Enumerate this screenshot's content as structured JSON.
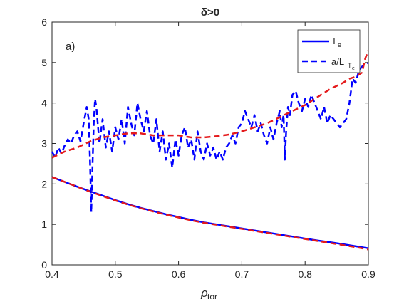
{
  "chart_data": {
    "type": "line",
    "title": "δ>0",
    "panel_label": "a)",
    "xlabel": "ρ",
    "xlabel_sub": "tor",
    "ylabel": "",
    "xlim": [
      0.4,
      0.9
    ],
    "ylim": [
      0,
      6
    ],
    "xticks": [
      "0.4",
      "0.5",
      "0.6",
      "0.7",
      "0.8",
      "0.9"
    ],
    "yticks": [
      "0",
      "1",
      "2",
      "3",
      "4",
      "5",
      "6"
    ],
    "grid": false,
    "legend_position": "top-right",
    "legend": [
      {
        "label": "T",
        "sub": "e",
        "style": "solid",
        "color": "#0000ff"
      },
      {
        "label": "a/L",
        "sub": "T",
        "subsub": "e",
        "style": "dashed",
        "color": "#0000ff"
      }
    ],
    "series": [
      {
        "name": "T_e",
        "dataset": "blue",
        "style": "solid",
        "color": "#0000ff",
        "x": [
          0.4,
          0.42,
          0.44,
          0.46,
          0.48,
          0.5,
          0.52,
          0.54,
          0.56,
          0.58,
          0.6,
          0.62,
          0.64,
          0.66,
          0.68,
          0.7,
          0.72,
          0.74,
          0.76,
          0.78,
          0.8,
          0.82,
          0.84,
          0.86,
          0.88,
          0.9
        ],
        "y": [
          2.17,
          2.05,
          1.93,
          1.82,
          1.71,
          1.6,
          1.5,
          1.41,
          1.33,
          1.25,
          1.18,
          1.11,
          1.05,
          1.0,
          0.95,
          0.9,
          0.85,
          0.8,
          0.75,
          0.7,
          0.65,
          0.6,
          0.56,
          0.51,
          0.46,
          0.41
        ]
      },
      {
        "name": "T_e",
        "dataset": "red",
        "style": "dashed",
        "color": "#e41a1c",
        "x": [
          0.4,
          0.42,
          0.44,
          0.46,
          0.48,
          0.5,
          0.52,
          0.54,
          0.56,
          0.58,
          0.6,
          0.62,
          0.64,
          0.66,
          0.68,
          0.7,
          0.72,
          0.74,
          0.76,
          0.78,
          0.8,
          0.82,
          0.84,
          0.86,
          0.88,
          0.9
        ],
        "y": [
          2.17,
          2.05,
          1.93,
          1.81,
          1.7,
          1.59,
          1.49,
          1.4,
          1.32,
          1.24,
          1.17,
          1.1,
          1.04,
          0.99,
          0.94,
          0.89,
          0.84,
          0.79,
          0.74,
          0.69,
          0.64,
          0.59,
          0.54,
          0.49,
          0.44,
          0.38
        ]
      },
      {
        "name": "a/L_Te",
        "dataset": "blue",
        "style": "dashed",
        "color": "#0000ff",
        "x": [
          0.4,
          0.405,
          0.41,
          0.415,
          0.42,
          0.425,
          0.43,
          0.435,
          0.44,
          0.445,
          0.45,
          0.455,
          0.458,
          0.46,
          0.462,
          0.464,
          0.466,
          0.468,
          0.47,
          0.475,
          0.48,
          0.485,
          0.49,
          0.495,
          0.5,
          0.505,
          0.51,
          0.515,
          0.52,
          0.525,
          0.53,
          0.535,
          0.54,
          0.545,
          0.55,
          0.555,
          0.56,
          0.565,
          0.57,
          0.575,
          0.58,
          0.585,
          0.59,
          0.595,
          0.6,
          0.605,
          0.61,
          0.615,
          0.62,
          0.625,
          0.63,
          0.635,
          0.64,
          0.645,
          0.65,
          0.655,
          0.66,
          0.665,
          0.67,
          0.675,
          0.68,
          0.685,
          0.69,
          0.695,
          0.7,
          0.705,
          0.71,
          0.715,
          0.72,
          0.725,
          0.73,
          0.735,
          0.74,
          0.745,
          0.75,
          0.755,
          0.76,
          0.763,
          0.766,
          0.768,
          0.77,
          0.773,
          0.776,
          0.78,
          0.785,
          0.79,
          0.795,
          0.8,
          0.805,
          0.81,
          0.815,
          0.82,
          0.825,
          0.83,
          0.835,
          0.84,
          0.845,
          0.85,
          0.855,
          0.86,
          0.865,
          0.87,
          0.875,
          0.88,
          0.885,
          0.89,
          0.895,
          0.9
        ],
        "y": [
          2.8,
          2.65,
          2.9,
          2.75,
          2.95,
          3.1,
          3.0,
          3.2,
          3.3,
          3.05,
          3.5,
          3.9,
          3.6,
          2.6,
          1.3,
          2.4,
          3.5,
          4.1,
          3.9,
          3.0,
          3.6,
          2.9,
          3.3,
          2.8,
          3.4,
          3.1,
          3.6,
          3.0,
          3.9,
          3.5,
          3.2,
          4.0,
          3.6,
          3.3,
          3.8,
          3.2,
          3.0,
          3.6,
          2.8,
          3.3,
          2.6,
          3.0,
          2.4,
          3.1,
          2.7,
          3.2,
          3.4,
          2.9,
          3.1,
          2.6,
          3.3,
          2.8,
          2.6,
          3.0,
          2.7,
          2.9,
          2.6,
          2.8,
          2.6,
          2.9,
          3.0,
          3.2,
          3.0,
          3.4,
          3.5,
          3.8,
          3.6,
          3.4,
          3.7,
          3.3,
          3.5,
          3.2,
          3.0,
          3.4,
          3.1,
          3.5,
          3.8,
          3.4,
          3.7,
          2.6,
          3.3,
          3.9,
          3.7,
          4.2,
          4.3,
          4.0,
          3.8,
          4.1,
          3.9,
          4.2,
          4.0,
          3.8,
          3.6,
          3.9,
          3.5,
          3.7,
          3.6,
          3.5,
          3.4,
          3.5,
          3.6,
          4.0,
          4.6,
          4.5,
          4.8,
          4.9,
          4.95,
          5.0
        ]
      },
      {
        "name": "a/L_Te",
        "dataset": "red",
        "style": "dashed",
        "color": "#e41a1c",
        "x": [
          0.4,
          0.42,
          0.44,
          0.46,
          0.48,
          0.5,
          0.52,
          0.54,
          0.56,
          0.58,
          0.6,
          0.62,
          0.64,
          0.66,
          0.68,
          0.7,
          0.72,
          0.74,
          0.76,
          0.78,
          0.8,
          0.82,
          0.84,
          0.86,
          0.87,
          0.88,
          0.89,
          0.895,
          0.9
        ],
        "y": [
          2.65,
          2.8,
          2.9,
          3.05,
          3.15,
          3.2,
          3.25,
          3.25,
          3.2,
          3.2,
          3.2,
          3.15,
          3.15,
          3.18,
          3.22,
          3.3,
          3.4,
          3.5,
          3.65,
          3.8,
          3.95,
          4.15,
          4.35,
          4.5,
          4.6,
          4.65,
          4.75,
          5.1,
          5.3
        ]
      }
    ]
  }
}
